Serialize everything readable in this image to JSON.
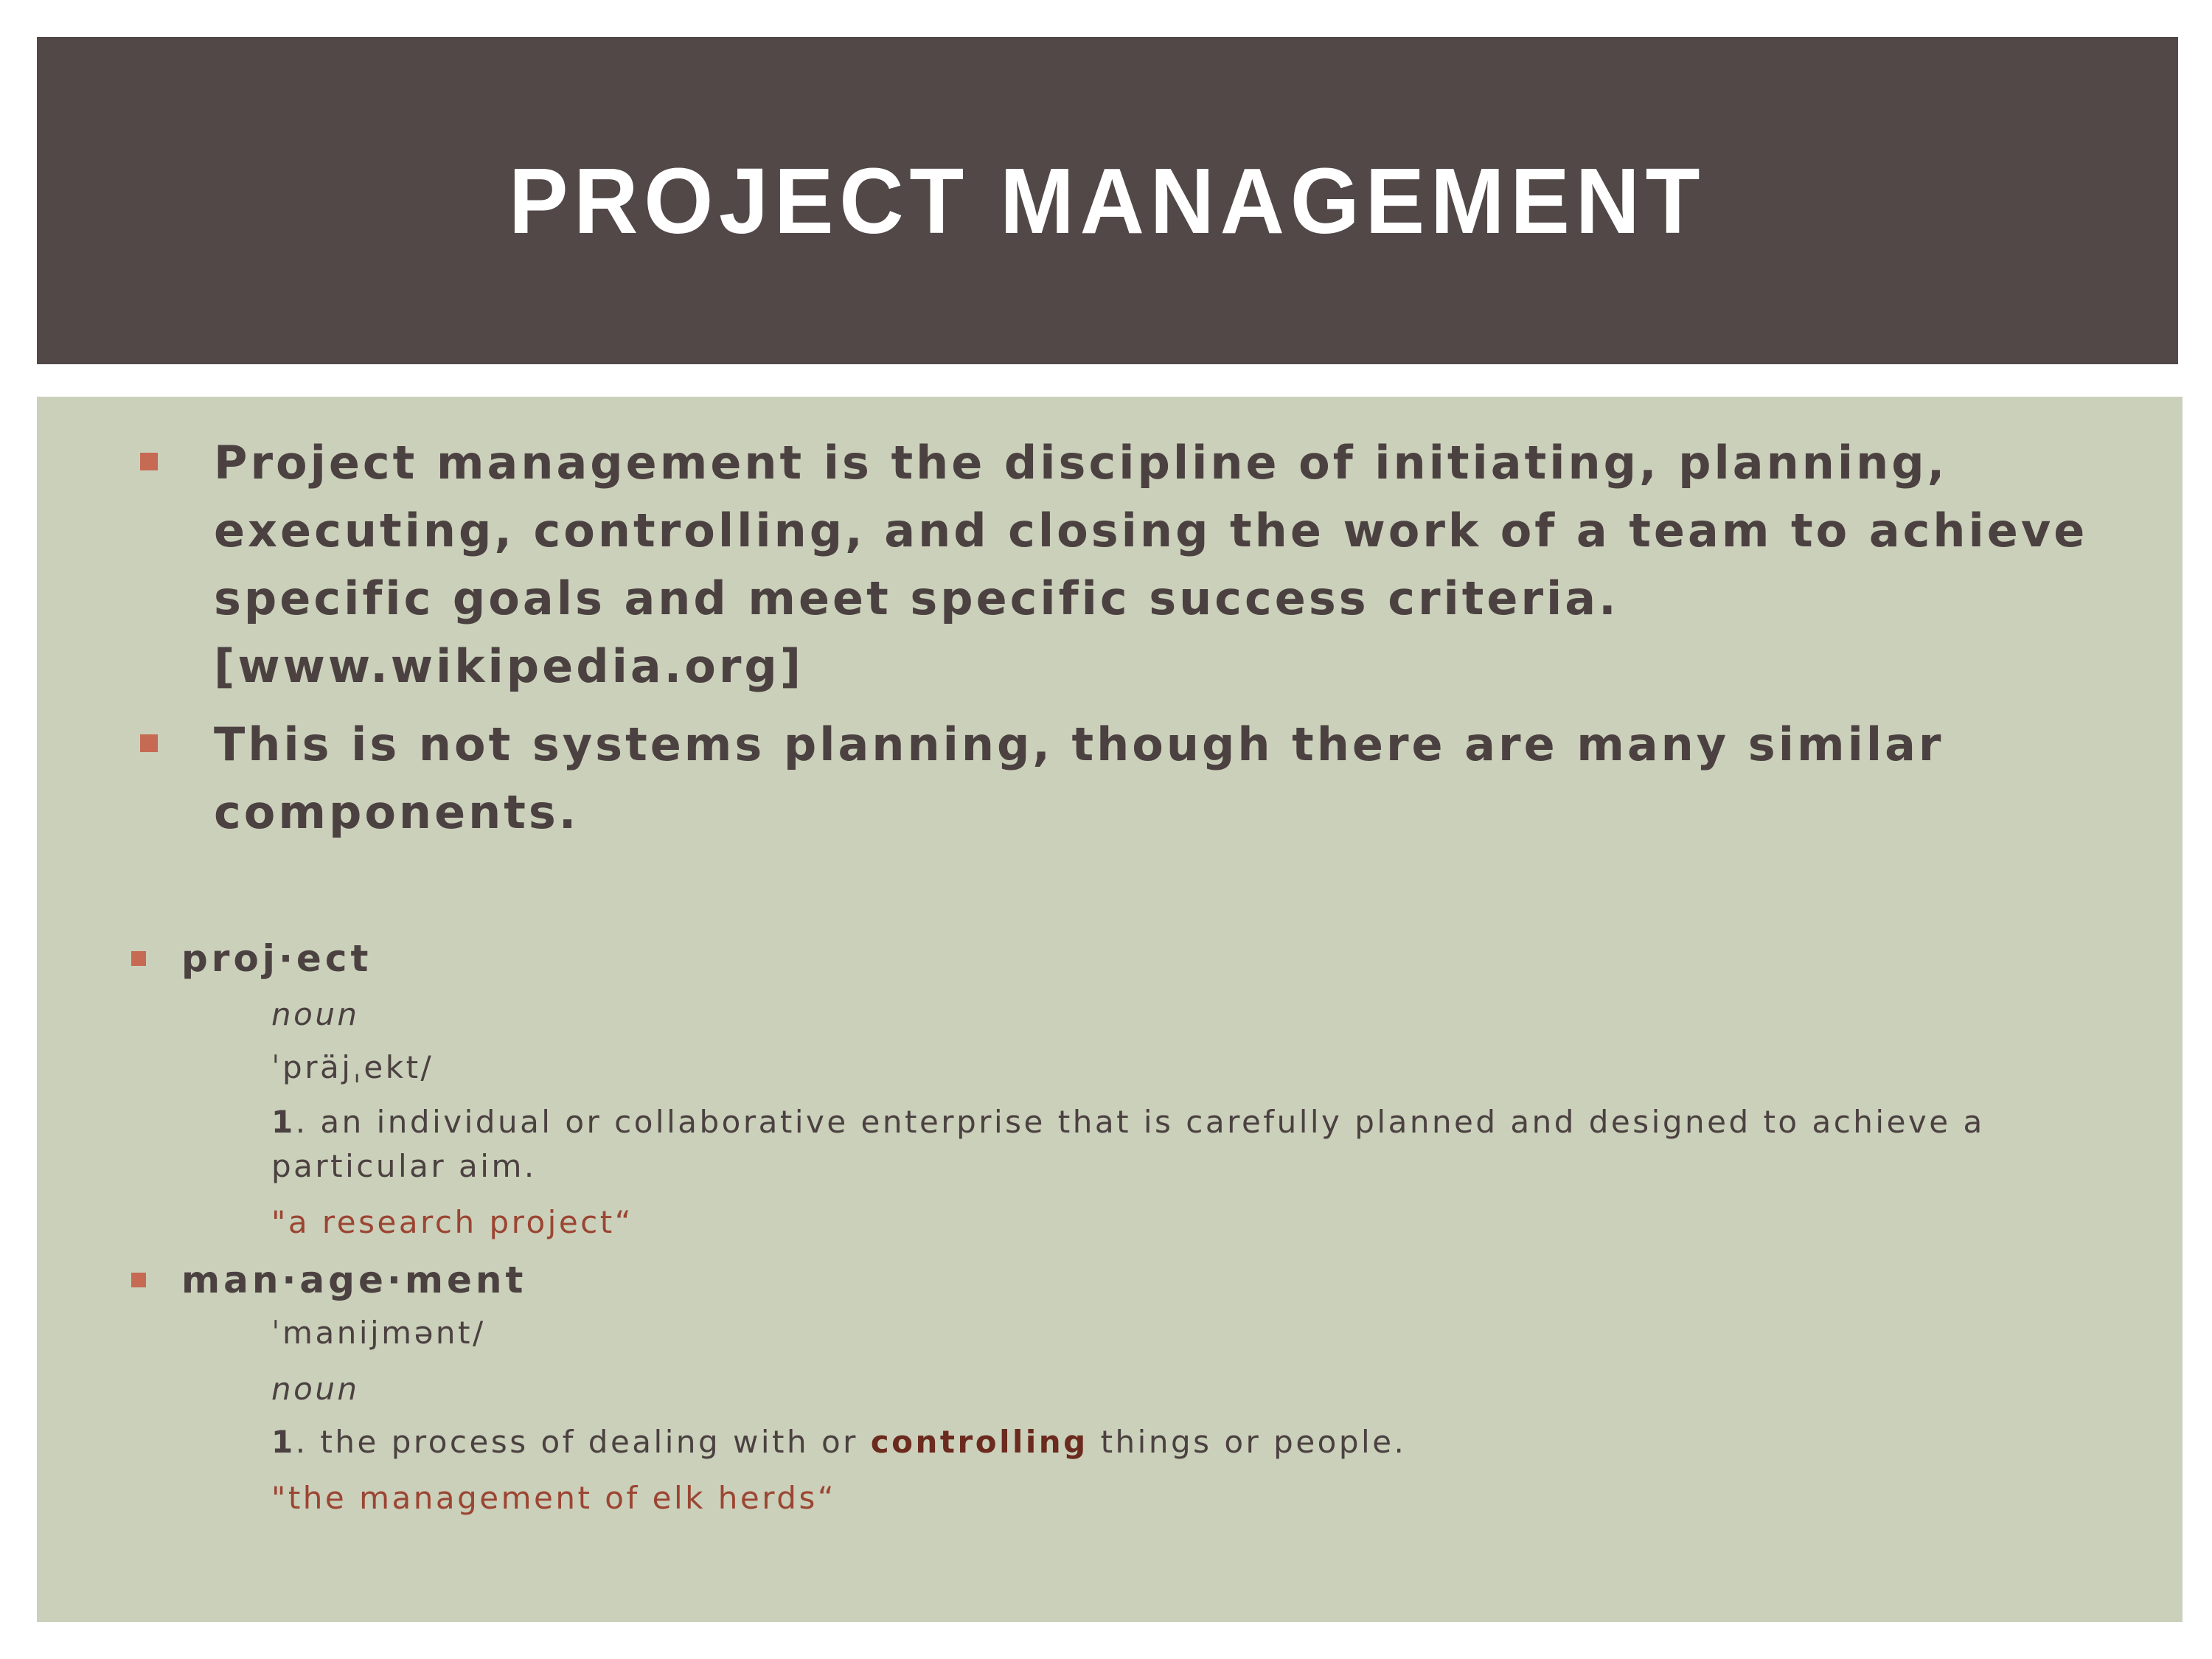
{
  "slide": {
    "title": "PROJECT MANAGEMENT"
  },
  "bullets": [
    {
      "text": "Project management is the discipline of initiating, planning, executing, controlling, and closing the work of a team to achieve specific goals and meet specific success criteria. [www.wikipedia.org]"
    },
    {
      "text": "This is not systems planning, though there are many similar components."
    }
  ],
  "definitions": {
    "project": {
      "term": "proj·ect",
      "part_of_speech": "noun",
      "pronunciation": "ˈpräjˌekt/",
      "number": "1",
      "definition": ". an individual or collaborative enterprise that is carefully planned and designed to achieve a particular aim.",
      "example": "\"a research project“"
    },
    "management": {
      "term": "man·age·ment",
      "pronunciation": "ˈmanijmənt/",
      "part_of_speech": "noun",
      "number": "1",
      "definition_before": ". the process of dealing with or ",
      "definition_emphasis": "controlling",
      "definition_after": " things or people.",
      "example": "\"the management of elk herds“"
    }
  },
  "colors": {
    "title_bar": "#524848",
    "content_bg": "#cbd0ba",
    "bullet": "#c66a54",
    "text": "#4b4141",
    "example": "#9b4533",
    "emphasis": "#6b2a1e"
  }
}
